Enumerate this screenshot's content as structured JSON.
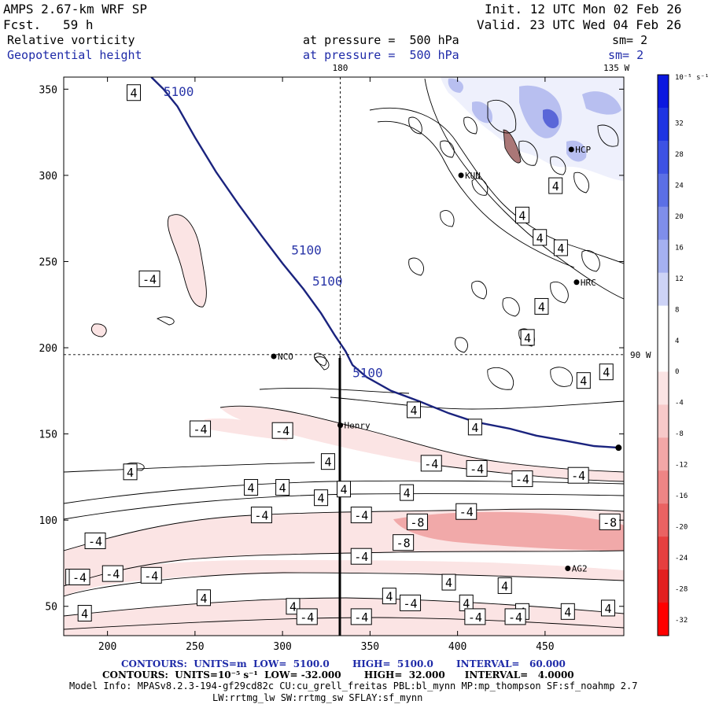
{
  "header": {
    "model": "AMPS 2.67-km WRF SP",
    "fcst_label": "Fcst.",
    "fcst_value": "59 h",
    "init": "Init. 12 UTC Mon 02 Feb 26",
    "valid": "Valid. 23 UTC Wed 04 Feb 26",
    "field1": "Relative vorticity",
    "field1_level": "at pressure =  500 hPa",
    "field1_sm": "sm= 2",
    "field2": "Geopotential height",
    "field2_level": "at pressure =  500 hPa",
    "field2_sm": "sm= 2"
  },
  "colors": {
    "height_contour": "#1a237e",
    "neg_fill": "#fbe4e4",
    "neg_fill_strong": "#f1a9a9",
    "pos_fill": "#b8bff0",
    "pos_fill_strong": "#5a66d8"
  },
  "chart_data": {
    "type": "heatmap",
    "title": "Relative vorticity / Geopotential height at 500 hPa",
    "xlim": [
      175,
      495
    ],
    "ylim": [
      33,
      357
    ],
    "x_ticks": [
      200,
      250,
      300,
      350,
      400,
      450
    ],
    "y_ticks": [
      50,
      100,
      150,
      200,
      250,
      300,
      350
    ],
    "grid_lines": {
      "meridian": {
        "x": 333,
        "label": "180"
      },
      "parallel": {
        "y": 196,
        "label": "90 W"
      },
      "corner_label": "135 W"
    },
    "geopotential_contour": {
      "value": 5100,
      "label": "5100",
      "points": [
        [
          225,
          357
        ],
        [
          232,
          350
        ],
        [
          240,
          340
        ],
        [
          250,
          322
        ],
        [
          262,
          302
        ],
        [
          275,
          283
        ],
        [
          288,
          265
        ],
        [
          300,
          249
        ],
        [
          312,
          234
        ],
        [
          322,
          220
        ],
        [
          330,
          207
        ],
        [
          336,
          198
        ],
        [
          340,
          190
        ],
        [
          348,
          183
        ],
        [
          362,
          175
        ],
        [
          378,
          169
        ],
        [
          395,
          162
        ],
        [
          410,
          157
        ],
        [
          430,
          153
        ],
        [
          445,
          149
        ],
        [
          462,
          146
        ],
        [
          478,
          143
        ],
        [
          492,
          142
        ]
      ],
      "labels": [
        [
          232,
          346
        ],
        [
          305,
          254
        ],
        [
          317,
          236
        ],
        [
          340,
          183
        ]
      ]
    },
    "stations": [
      {
        "name": "KUN",
        "x": 402,
        "y": 300
      },
      {
        "name": "HRC",
        "x": 468,
        "y": 238
      },
      {
        "name": "NCO",
        "x": 295,
        "y": 195
      },
      {
        "name": "Henry",
        "x": 333,
        "y": 155
      },
      {
        "name": "AG2",
        "x": 463,
        "y": 72
      },
      {
        "name": "HCP",
        "x": 465,
        "y": 315
      }
    ],
    "vorticity_labels": [
      {
        "text": "4",
        "x": 215,
        "y": 348
      },
      {
        "text": "-4",
        "x": 224,
        "y": 240
      },
      {
        "text": "4",
        "x": 437,
        "y": 277
      },
      {
        "text": "4",
        "x": 447,
        "y": 264
      },
      {
        "text": "4",
        "x": 456,
        "y": 294
      },
      {
        "text": "4",
        "x": 459,
        "y": 258
      },
      {
        "text": "4",
        "x": 448,
        "y": 224
      },
      {
        "text": "4",
        "x": 440,
        "y": 206
      },
      {
        "text": "4",
        "x": 485,
        "y": 186
      },
      {
        "text": "4",
        "x": 472,
        "y": 181
      },
      {
        "text": "4",
        "x": 375,
        "y": 164
      },
      {
        "text": "4",
        "x": 410,
        "y": 154
      },
      {
        "text": "-4",
        "x": 253,
        "y": 153
      },
      {
        "text": "-4",
        "x": 300,
        "y": 152
      },
      {
        "text": "-4",
        "x": 385,
        "y": 133
      },
      {
        "text": "4",
        "x": 326,
        "y": 134
      },
      {
        "text": "-4",
        "x": 411,
        "y": 130
      },
      {
        "text": "-4",
        "x": 437,
        "y": 124
      },
      {
        "text": "-4",
        "x": 469,
        "y": 126
      },
      {
        "text": "4",
        "x": 213,
        "y": 128
      },
      {
        "text": "4",
        "x": 282,
        "y": 119
      },
      {
        "text": "4",
        "x": 300,
        "y": 119
      },
      {
        "text": "4",
        "x": 335,
        "y": 118
      },
      {
        "text": "4",
        "x": 322,
        "y": 113
      },
      {
        "text": "4",
        "x": 371,
        "y": 116
      },
      {
        "text": "-4",
        "x": 288,
        "y": 103
      },
      {
        "text": "-4",
        "x": 345,
        "y": 103
      },
      {
        "text": "-4",
        "x": 405,
        "y": 105
      },
      {
        "text": "-8",
        "x": 377,
        "y": 99
      },
      {
        "text": "-8",
        "x": 487,
        "y": 99
      },
      {
        "text": "-8",
        "x": 369,
        "y": 87
      },
      {
        "text": "-4",
        "x": 193,
        "y": 88
      },
      {
        "text": "-4",
        "x": 345,
        "y": 79
      },
      {
        "text": "-4",
        "x": 182,
        "y": 67
      },
      {
        "text": "-4",
        "x": 184,
        "y": 67
      },
      {
        "text": "-4",
        "x": 203,
        "y": 69
      },
      {
        "text": "-4",
        "x": 225,
        "y": 68
      },
      {
        "text": "4",
        "x": 395,
        "y": 64
      },
      {
        "text": "4",
        "x": 427,
        "y": 62
      },
      {
        "text": "4",
        "x": 255,
        "y": 55
      },
      {
        "text": "4",
        "x": 361,
        "y": 56
      },
      {
        "text": "4",
        "x": 405,
        "y": 52
      },
      {
        "text": "-4",
        "x": 373,
        "y": 52
      },
      {
        "text": "4",
        "x": 306,
        "y": 50
      },
      {
        "text": "4",
        "x": 187,
        "y": 46
      },
      {
        "text": "-4",
        "x": 314,
        "y": 44
      },
      {
        "text": "-4",
        "x": 345,
        "y": 44
      },
      {
        "text": "-4",
        "x": 410,
        "y": 44
      },
      {
        "text": "4",
        "x": 437,
        "y": 47
      },
      {
        "text": "-4",
        "x": 433,
        "y": 44
      },
      {
        "text": "4",
        "x": 463,
        "y": 47
      },
      {
        "text": "4",
        "x": 486,
        "y": 49
      }
    ],
    "colorbar": {
      "units": "10⁻⁵ s⁻¹",
      "labels": [
        "32",
        "28",
        "24",
        "20",
        "16",
        "12",
        "8",
        "4",
        "0",
        "-4",
        "-8",
        "-12",
        "-16",
        "-20",
        "-24",
        "-28",
        "-32"
      ],
      "colors": [
        "#0b18e0",
        "#1e34e2",
        "#3d52e4",
        "#5b6fe6",
        "#7f8eea",
        "#a5b0f0",
        "#cdd3f6",
        "#ffffff",
        "#ffffff",
        "#fbe4e4",
        "#f7c9c9",
        "#f2a7a7",
        "#ee8585",
        "#ea6262",
        "#e63f3f",
        "#e22020",
        "#ff0000"
      ]
    }
  },
  "footer": {
    "line1": "CONTOURS:  UNITS=m  LOW=  5100.0       HIGH=  5100.0       INTERVAL=   60.000",
    "line2": "CONTOURS:  UNITS=10⁻⁵ s⁻¹  LOW= -32.000       HIGH=  32.000      INTERVAL=   4.0000",
    "line3": "Model Info: MPASv8.2.3-194-gf29cd82c CU:cu_grell_freitas PBL:bl_mynn MP:mp_thompson SF:sf_noahmp 2.7",
    "line4": "LW:rrtmg_lw SW:rrtmg_sw SFLAY:sf_mynn"
  }
}
